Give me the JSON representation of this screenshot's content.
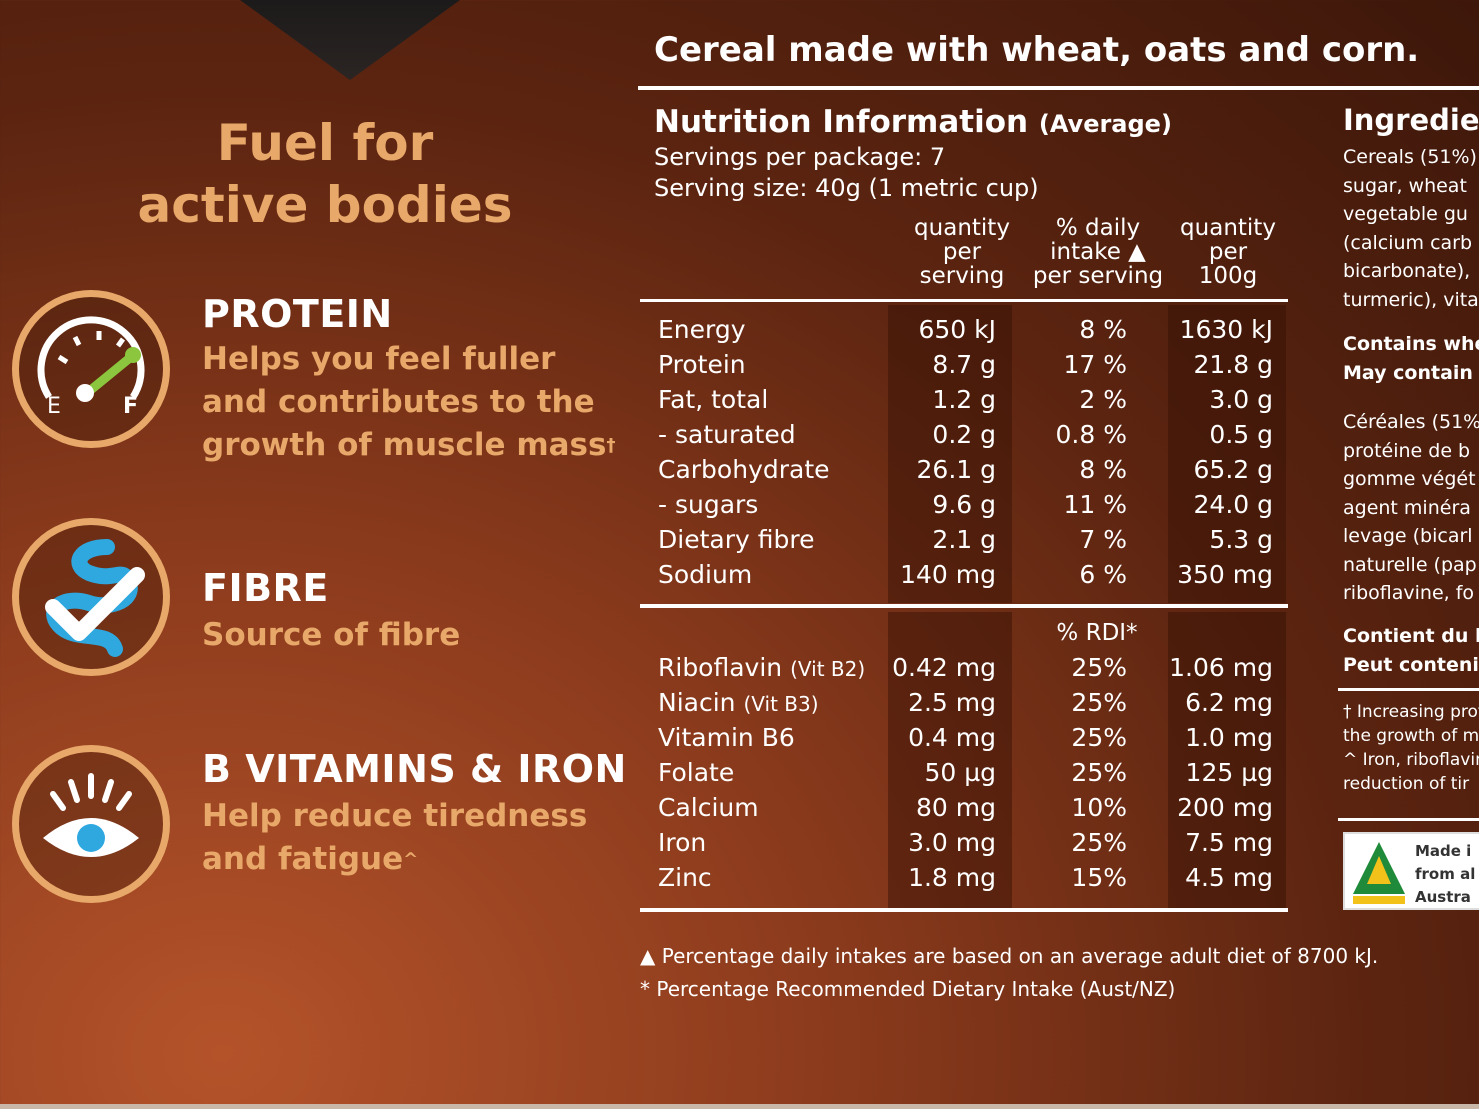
{
  "left": {
    "title_line1": "Fuel for",
    "title_line2": "active bodies",
    "benefits": [
      {
        "icon": "fuel-gauge-icon",
        "heading": "PROTEIN",
        "lines": [
          "Helps you feel fuller",
          "and contributes to the",
          "growth of muscle mass"
        ],
        "mark": "†",
        "gauge_e": "E",
        "gauge_f": "F"
      },
      {
        "icon": "gut-check-icon",
        "heading": "FIBRE",
        "lines": [
          "Source of fibre"
        ],
        "mark": ""
      },
      {
        "icon": "eye-icon",
        "heading": "B VITAMINS & IRON",
        "lines": [
          "Help reduce tiredness",
          "and fatigue"
        ],
        "mark": "^"
      }
    ]
  },
  "panel": {
    "heading": "Cereal made with wheat, oats and corn.",
    "nutrition_title": "Nutrition Information",
    "nutrition_title_suffix": "(Average)",
    "servings_per_package": "Servings per package: 7",
    "serving_size": "Serving size: 40g (1 metric cup)",
    "col_heads": [
      [
        "quantity",
        "per",
        "serving"
      ],
      [
        "% daily",
        "intake ▲",
        "per serving"
      ],
      [
        "quantity",
        "per",
        "100g"
      ]
    ],
    "rows": [
      {
        "label": "Energy",
        "serving": "650 kJ",
        "di": "8 %",
        "per100": "1630 kJ"
      },
      {
        "label": "Protein",
        "serving": "8.7 g",
        "di": "17 %",
        "per100": "21.8 g"
      },
      {
        "label": "Fat, total",
        "serving": "1.2 g",
        "di": "2 %",
        "per100": "3.0 g"
      },
      {
        "label": "- saturated",
        "serving": "0.2 g",
        "di": "0.8 %",
        "per100": "0.5 g"
      },
      {
        "label": "Carbohydrate",
        "serving": "26.1 g",
        "di": "8 %",
        "per100": "65.2 g"
      },
      {
        "label": "- sugars",
        "serving": "9.6 g",
        "di": "11 %",
        "per100": "24.0 g"
      },
      {
        "label": "Dietary fibre",
        "serving": "2.1 g",
        "di": "7 %",
        "per100": "5.3 g"
      },
      {
        "label": "Sodium",
        "serving": "140 mg",
        "di": "6 %",
        "per100": "350 mg"
      }
    ],
    "rdi_head": "% RDI*",
    "vitamins": [
      {
        "label": "Riboflavin",
        "sub": "(Vit B2)",
        "serving": "0.42 mg",
        "rdi": "25%",
        "per100": "1.06 mg"
      },
      {
        "label": "Niacin",
        "sub": "(Vit B3)",
        "serving": "2.5 mg",
        "rdi": "25%",
        "per100": "6.2 mg"
      },
      {
        "label": "Vitamin B6",
        "sub": "",
        "serving": "0.4 mg",
        "rdi": "25%",
        "per100": "1.0 mg"
      },
      {
        "label": "Folate",
        "sub": "",
        "serving": "50 µg",
        "rdi": "25%",
        "per100": "125 µg"
      },
      {
        "label": "Calcium",
        "sub": "",
        "serving": "80 mg",
        "rdi": "10%",
        "per100": "200 mg"
      },
      {
        "label": "Iron",
        "sub": "",
        "serving": "3.0 mg",
        "rdi": "25%",
        "per100": "7.5 mg"
      },
      {
        "label": "Zinc",
        "sub": "",
        "serving": "1.8 mg",
        "rdi": "15%",
        "per100": "4.5 mg"
      }
    ],
    "footnote1": "▲ Percentage daily intakes are based on an average adult diet of 8700 kJ.",
    "footnote2": "* Percentage Recommended Dietary Intake (Aust/NZ)"
  },
  "ingredients": {
    "title": "Ingredier",
    "lines": [
      "Cereals (51%)",
      "sugar, wheat",
      "vegetable gu",
      "(calcium carb",
      "bicarbonate),",
      "turmeric), vita"
    ],
    "contains": [
      "Contains whe",
      "May contain"
    ],
    "french": [
      "Céréales (51%",
      "protéine de b",
      "gomme végét",
      "agent minéra",
      "levage (bicarl",
      "naturelle (pap",
      "riboflavine, fo"
    ],
    "contient": [
      "Contient du b",
      "Peut contenir"
    ],
    "notes": [
      "† Increasing prote",
      "the growth of m",
      "^ Iron, riboflavin,",
      "reduction of tir"
    ],
    "made_in": [
      "Made i",
      "from al",
      "Austra"
    ]
  },
  "colors": {
    "accent": "#e8a86a",
    "gut": "#2fa8df"
  }
}
